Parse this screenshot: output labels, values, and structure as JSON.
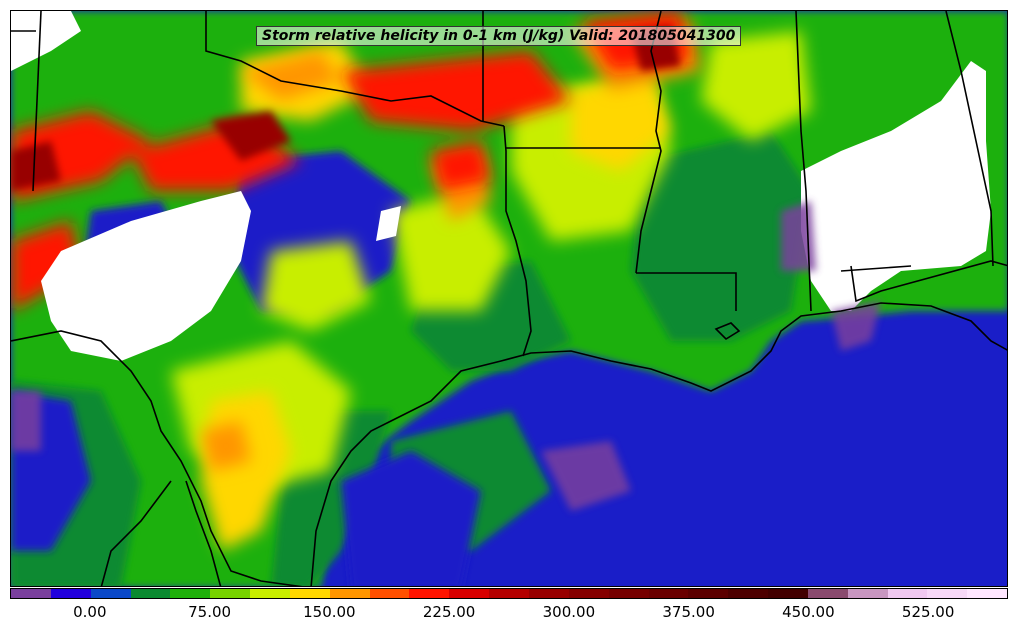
{
  "title": "Storm relative helicity in 0-1 km (J/kg) Valid: 201805041300",
  "colorbar": {
    "colors": [
      "#7a3f9d",
      "#2200dd",
      "#0a48c8",
      "#0a8a30",
      "#1eb00a",
      "#77d300",
      "#c8ee00",
      "#ffd700",
      "#ff9600",
      "#ff5000",
      "#ff1400",
      "#d80000",
      "#b40000",
      "#980000",
      "#850000",
      "#760000",
      "#6a0000",
      "#5c0000",
      "#4d0000",
      "#420000",
      "#8a4a6e",
      "#c896c0",
      "#f0c8f0",
      "#f7d8f7",
      "#ffe6ff"
    ],
    "tick_labels": [
      {
        "value": "0.00",
        "pos": 0.08
      },
      {
        "value": "75.00",
        "pos": 0.2
      },
      {
        "value": "150.00",
        "pos": 0.32
      },
      {
        "value": "225.00",
        "pos": 0.44
      },
      {
        "value": "300.00",
        "pos": 0.56
      },
      {
        "value": "375.00",
        "pos": 0.68
      },
      {
        "value": "450.00",
        "pos": 0.8
      },
      {
        "value": "525.00",
        "pos": 0.92
      }
    ]
  },
  "map": {
    "ocean_color": "#1a1ec8",
    "border_color": "#000000"
  }
}
